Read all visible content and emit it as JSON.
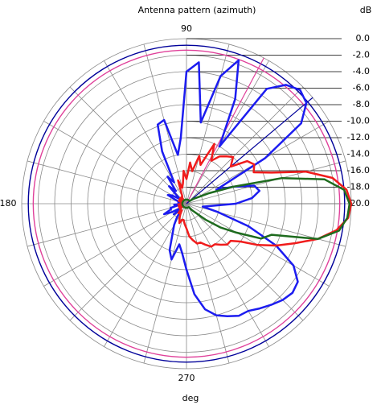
{
  "chart_data": {
    "type": "polar",
    "title": "Antenna pattern (azimuth)",
    "y_label": "dB",
    "x_label": "deg",
    "ylim": [
      -20,
      0
    ],
    "yticks": [
      {
        "value": 0,
        "label": "0.0"
      },
      {
        "value": -2,
        "label": "-2.0"
      },
      {
        "value": -4,
        "label": "-4.0"
      },
      {
        "value": -6,
        "label": "-6.0"
      },
      {
        "value": -8,
        "label": "-8.0"
      },
      {
        "value": -10,
        "label": "-10.0"
      },
      {
        "value": -12,
        "label": "-12.0"
      },
      {
        "value": -14,
        "label": "-14.0"
      },
      {
        "value": -16,
        "label": "-16.0"
      },
      {
        "value": -18,
        "label": "-18.0"
      },
      {
        "value": -20,
        "label": "-20.0"
      }
    ],
    "xticks": [
      90,
      180,
      270
    ],
    "angle_grid_step": 15,
    "grid": true,
    "x": [
      0,
      5,
      10,
      15,
      20,
      25,
      30,
      35,
      40,
      45,
      50,
      55,
      60,
      65,
      70,
      75,
      80,
      85,
      90,
      95,
      100,
      105,
      110,
      115,
      120,
      125,
      130,
      135,
      140,
      145,
      150,
      155,
      160,
      165,
      170,
      175,
      180,
      185,
      190,
      195,
      200,
      205,
      210,
      215,
      220,
      225,
      230,
      235,
      240,
      245,
      250,
      255,
      260,
      265,
      270,
      275,
      280,
      285,
      290,
      295,
      300,
      305,
      310,
      315,
      320,
      325,
      330,
      335,
      340,
      345,
      350,
      355
    ],
    "series": [
      {
        "color": "#1c1cf0",
        "values": [
          -14,
          -12,
          -11,
          -11.5,
          -14,
          -16,
          -9,
          -3,
          -1,
          -0.5,
          -1.2,
          -3,
          -12,
          -6,
          -1.5,
          -4,
          -10,
          -2.8,
          -4,
          -12,
          -14,
          -9.5,
          -9.8,
          -13,
          -17,
          -16,
          -18,
          -17,
          -18.5,
          -19,
          -18,
          -17.5,
          -18.5,
          -19,
          -19,
          -19,
          -19.5,
          -18.5,
          -19,
          -18,
          -18,
          -17,
          -18,
          -19,
          -18,
          -19,
          -19,
          -18,
          -17,
          -16,
          -14,
          -13,
          -15,
          -14,
          -12,
          -9,
          -7,
          -6,
          -5.5,
          -5,
          -5,
          -4.5,
          -4,
          -3.5,
          -3.2,
          -3.5,
          -5,
          -8,
          -12,
          -16,
          -18,
          -17
        ]
      },
      {
        "color": "#f01c1c",
        "values": [
          0,
          -0.5,
          -2,
          -5,
          -9,
          -11,
          -10.5,
          -11,
          -13,
          -12,
          -12.5,
          -13,
          -14,
          -12,
          -15,
          -14,
          -16,
          -15,
          -17,
          -16,
          -17.5,
          -18,
          -17,
          -18.5,
          -19,
          -19,
          -19.5,
          -19,
          -19.5,
          -19,
          -19.5,
          -19.5,
          -19,
          -19.5,
          -19.5,
          -19.5,
          -19.5,
          -19,
          -19.5,
          -19.5,
          -19,
          -19.5,
          -19,
          -19.5,
          -19,
          -19,
          -18.5,
          -19,
          -18.5,
          -18,
          -17.5,
          -18,
          -18,
          -17.5,
          -17,
          -16,
          -15.5,
          -15,
          -15,
          -14.5,
          -14,
          -14,
          -13.5,
          -13,
          -13,
          -12,
          -10,
          -8,
          -6,
          -3.5,
          -1.5,
          -0.3
        ]
      },
      {
        "color": "#1e6b1e",
        "values": [
          -0.2,
          -0.8,
          -3,
          -8,
          -14,
          -17,
          -18.5,
          -19,
          -19.5,
          -19.5,
          -19.5,
          -19.5,
          -19.5,
          -19.5,
          -19.5,
          -19.5,
          -19.5,
          -19.5,
          -19.5,
          -19.5,
          -19.5,
          -19.5,
          -19.5,
          -19.5,
          -19.5,
          -19.5,
          -19.5,
          -19.5,
          -19.5,
          -19.5,
          -19.5,
          -19.5,
          -19.5,
          -19.5,
          -19.5,
          -19.5,
          -19.5,
          -19.5,
          -19.5,
          -19.5,
          -19.5,
          -19.5,
          -19.5,
          -19.5,
          -19.5,
          -19.5,
          -19.5,
          -19.5,
          -19.5,
          -19.5,
          -19.5,
          -19.5,
          -19.5,
          -19.5,
          -19.5,
          -19.5,
          -19.5,
          -19.5,
          -19.5,
          -19.5,
          -19.5,
          -19.5,
          -19,
          -18.5,
          -17,
          -15,
          -13,
          -10,
          -9,
          -3.5,
          -1.2,
          -0.4
        ]
      }
    ],
    "reference_circles": [
      {
        "color": "#00009a",
        "value": -0.8
      },
      {
        "color": "#e0409a",
        "value": -1.4
      }
    ],
    "reference_angles": [
      {
        "color": "#e0409a",
        "value": 62
      },
      {
        "color": "#00009a",
        "value": 40
      }
    ]
  }
}
